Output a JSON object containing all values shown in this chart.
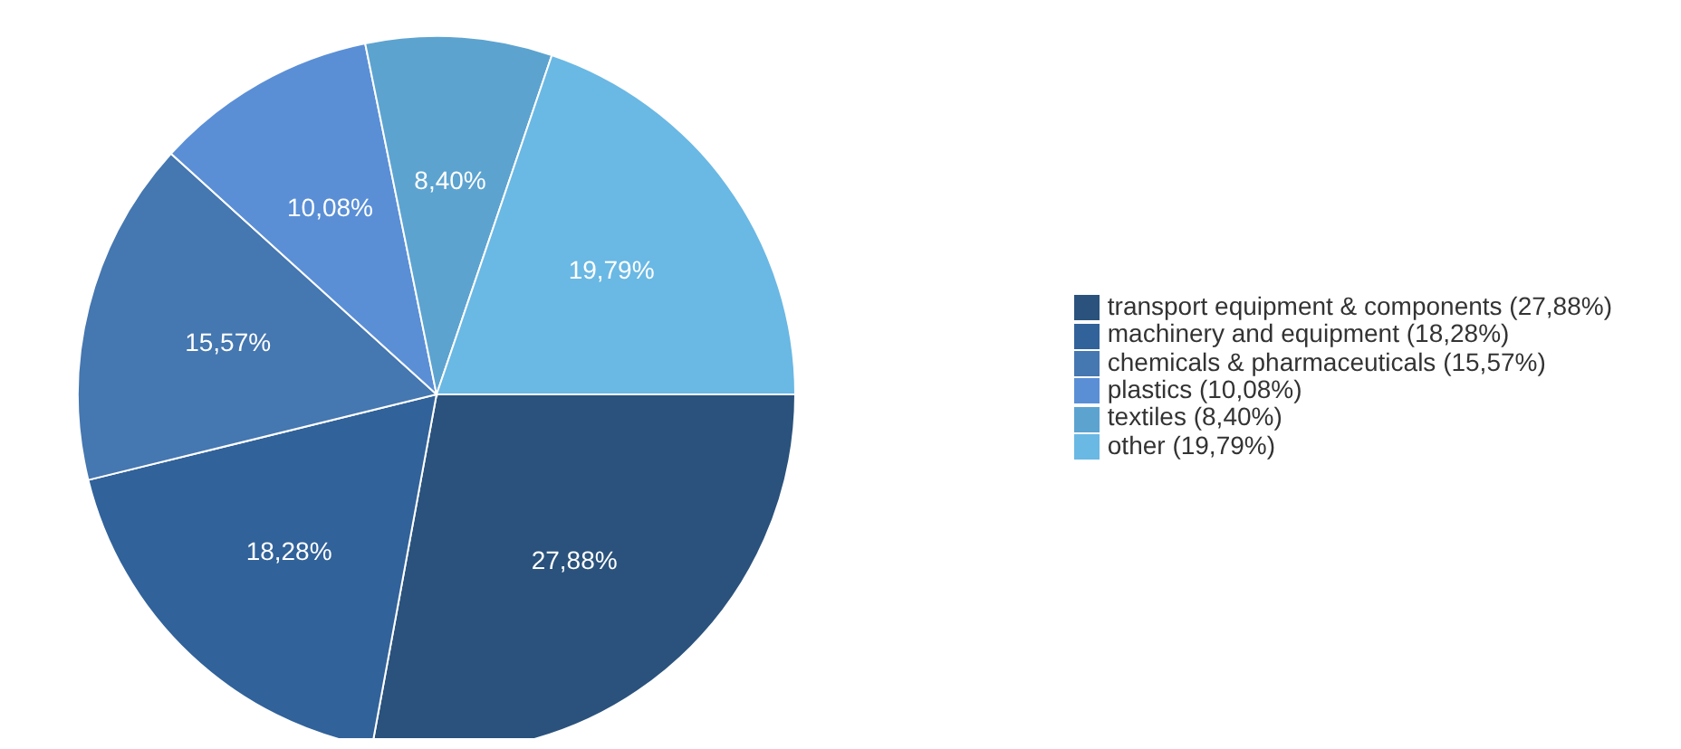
{
  "chart_data": {
    "type": "pie",
    "categories": [
      "transport equipment & components (27,88%)",
      "machinery and  equipment (18,28%)",
      "chemicals & pharmaceuticals (15,57%)",
      "plastics (10,08%)",
      "textiles (8,40%)",
      "other (19,79%)"
    ],
    "values": [
      27.88,
      18.28,
      15.57,
      10.08,
      8.4,
      19.79
    ],
    "value_labels": [
      "27,88%",
      "18,28%",
      "15,57%",
      "10,08%",
      "8,40%",
      "19,79%"
    ],
    "colors": [
      "#2a527c",
      "#31629a",
      "#4577b0",
      "#5a8fd6",
      "#5ca3d0",
      "#6ab8e4"
    ],
    "legend": "right"
  }
}
